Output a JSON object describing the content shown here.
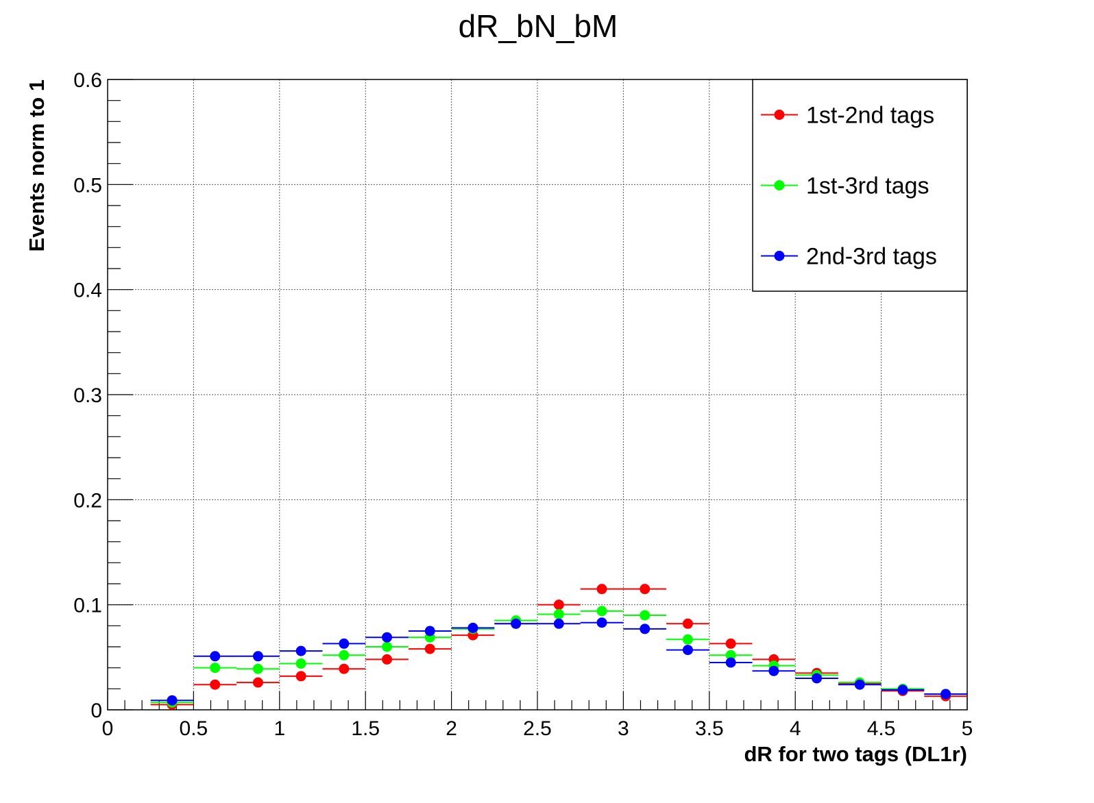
{
  "chart_data": {
    "type": "scatter",
    "title": "dR_bN_bM",
    "xlabel": "dR for two tags (DL1r)",
    "ylabel": "Events norm to 1",
    "xlim": [
      0,
      5
    ],
    "ylim": [
      0,
      0.6
    ],
    "grid": true,
    "legend_position": "top-right",
    "x_tick_labels": [
      "0",
      "0.5",
      "1",
      "1.5",
      "2",
      "2.5",
      "3",
      "3.5",
      "4",
      "4.5",
      "5"
    ],
    "y_tick_labels": [
      "0",
      "0.1",
      "0.2",
      "0.3",
      "0.4",
      "0.5",
      "0.6"
    ],
    "bin_width": 0.25,
    "x": [
      0.375,
      0.625,
      0.875,
      1.125,
      1.375,
      1.625,
      1.875,
      2.125,
      2.375,
      2.625,
      2.875,
      3.125,
      3.375,
      3.625,
      3.875,
      4.125,
      4.375,
      4.625,
      4.875
    ],
    "series": [
      {
        "name": "1st-2nd tags",
        "color": "#ff0000",
        "values": [
          0.005,
          0.024,
          0.026,
          0.032,
          0.039,
          0.048,
          0.058,
          0.071,
          0.082,
          0.1,
          0.115,
          0.115,
          0.082,
          0.063,
          0.048,
          0.035,
          0.025,
          0.018,
          0.013
        ]
      },
      {
        "name": "1st-3rd tags",
        "color": "#00ff00",
        "values": [
          0.007,
          0.04,
          0.039,
          0.044,
          0.052,
          0.06,
          0.069,
          0.077,
          0.085,
          0.091,
          0.094,
          0.09,
          0.067,
          0.052,
          0.042,
          0.033,
          0.026,
          0.02,
          0.015
        ]
      },
      {
        "name": "2nd-3rd tags",
        "color": "#0000ff",
        "values": [
          0.009,
          0.051,
          0.051,
          0.056,
          0.063,
          0.069,
          0.075,
          0.078,
          0.082,
          0.082,
          0.083,
          0.077,
          0.057,
          0.045,
          0.037,
          0.03,
          0.024,
          0.019,
          0.015
        ]
      }
    ]
  }
}
